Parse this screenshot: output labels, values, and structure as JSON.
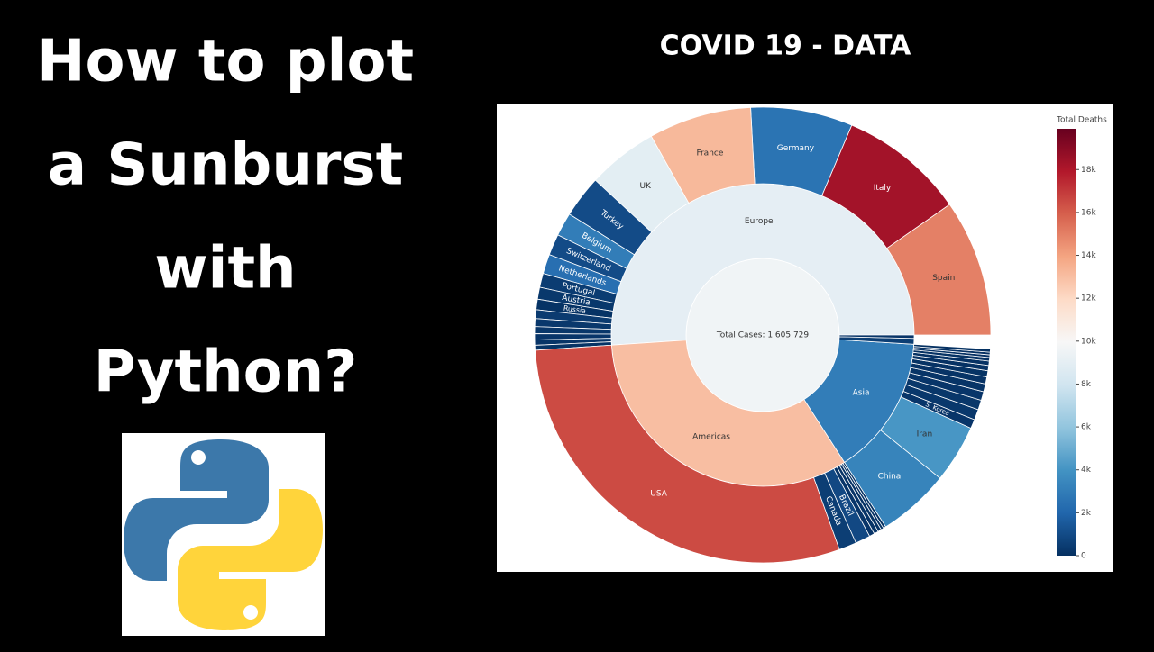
{
  "header": {
    "lines": [
      "How to plot",
      "a Sunburst",
      "with",
      "Python?"
    ]
  },
  "chart_data": {
    "type": "sunburst",
    "title": "COVID 19 - DATA",
    "colorbar_title": "Total Deaths",
    "colorscale": [
      "#053061",
      "#2166ac",
      "#4393c3",
      "#92c5de",
      "#d1e5f0",
      "#f7f7f7",
      "#fddbc7",
      "#f4a582",
      "#d6604d",
      "#b2182b",
      "#67001f"
    ],
    "clim": [
      0,
      19900
    ],
    "colorbar_ticks": [
      0,
      {
        "value": 2000,
        "label": "2k"
      },
      {
        "value": 4000,
        "label": "4k"
      },
      {
        "value": 6000,
        "label": "6k"
      },
      {
        "value": 8000,
        "label": "8k"
      },
      {
        "value": 10000,
        "label": "10k"
      },
      {
        "value": 12000,
        "label": "12k"
      },
      {
        "value": 14000,
        "label": "14k"
      },
      {
        "value": 16000,
        "label": "16k"
      },
      {
        "value": 18000,
        "label": "18k"
      }
    ],
    "root": {
      "label": "Total Cases: 1 605 729",
      "value": 1605729,
      "deaths": 9600,
      "children": [
        {
          "label": "Europe",
          "value": 820000,
          "deaths": 9000,
          "children": [
            {
              "label": "Spain",
              "value": 156000,
              "deaths": 15000
            },
            {
              "label": "Italy",
              "value": 143000,
              "deaths": 18300
            },
            {
              "label": "Germany",
              "value": 116000,
              "deaths": 2600
            },
            {
              "label": "France",
              "value": 117000,
              "deaths": 13200
            },
            {
              "label": "UK",
              "value": 80000,
              "deaths": 8900
            },
            {
              "label": "Turkey",
              "value": 48000,
              "deaths": 1000
            },
            {
              "label": "Belgium",
              "value": 26700,
              "deaths": 3000
            },
            {
              "label": "Switzerland",
              "value": 24000,
              "deaths": 1000
            },
            {
              "label": "Netherlands",
              "value": 22200,
              "deaths": 2400
            },
            {
              "label": "Portugal",
              "value": 16000,
              "deaths": 450
            },
            {
              "label": "Austria",
              "value": 13600,
              "deaths": 300
            },
            {
              "label": "Russia",
              "value": 11900,
              "deaths": 100
            },
            {
              "label": null,
              "value": 10000,
              "deaths": 400
            },
            {
              "label": null,
              "value": 9000,
              "deaths": 300
            },
            {
              "label": null,
              "value": 8000,
              "deaths": 250
            },
            {
              "label": null,
              "value": 7000,
              "deaths": 200
            },
            {
              "label": null,
              "value": 6000,
              "deaths": 150
            },
            {
              "label": null,
              "value": 5600,
              "deaths": 100
            }
          ]
        },
        {
          "label": "Americas",
          "value": 530000,
          "deaths": 13000,
          "children": [
            {
              "label": "USA",
              "value": 472000,
              "deaths": 16500
            },
            {
              "label": "Canada",
              "value": 20000,
              "deaths": 500
            },
            {
              "label": "Brazil",
              "value": 17000,
              "deaths": 900
            },
            {
              "label": null,
              "value": 6000,
              "deaths": 200
            },
            {
              "label": null,
              "value": 5000,
              "deaths": 150
            },
            {
              "label": null,
              "value": 4000,
              "deaths": 100
            },
            {
              "label": null,
              "value": 3000,
              "deaths": 80
            },
            {
              "label": null,
              "value": 3000,
              "deaths": 60
            }
          ]
        },
        {
          "label": "Asia",
          "value": 240000,
          "deaths": 3000,
          "children": [
            {
              "label": "China",
              "value": 82000,
              "deaths": 3300
            },
            {
              "label": "Iran",
              "value": 66000,
              "deaths": 4100
            },
            {
              "label": "S. Korea",
              "value": 10400,
              "deaths": 200
            },
            {
              "label": null,
              "value": 12000,
              "deaths": 300
            },
            {
              "label": null,
              "value": 11000,
              "deaths": 250
            },
            {
              "label": null,
              "value": 10000,
              "deaths": 200
            },
            {
              "label": null,
              "value": 9000,
              "deaths": 150
            },
            {
              "label": null,
              "value": 8000,
              "deaths": 120
            },
            {
              "label": null,
              "value": 7000,
              "deaths": 100
            },
            {
              "label": null,
              "value": 6000,
              "deaths": 90
            },
            {
              "label": null,
              "value": 5000,
              "deaths": 80
            },
            {
              "label": null,
              "value": 4000,
              "deaths": 60
            },
            {
              "label": null,
              "value": 3000,
              "deaths": 50
            },
            {
              "label": null,
              "value": 3000,
              "deaths": 40
            },
            {
              "label": null,
              "value": 3600,
              "deaths": 30
            }
          ]
        },
        {
          "label": null,
          "value": 10000,
          "deaths": 500
        },
        {
          "label": null,
          "value": 5729,
          "deaths": 200
        }
      ]
    }
  }
}
